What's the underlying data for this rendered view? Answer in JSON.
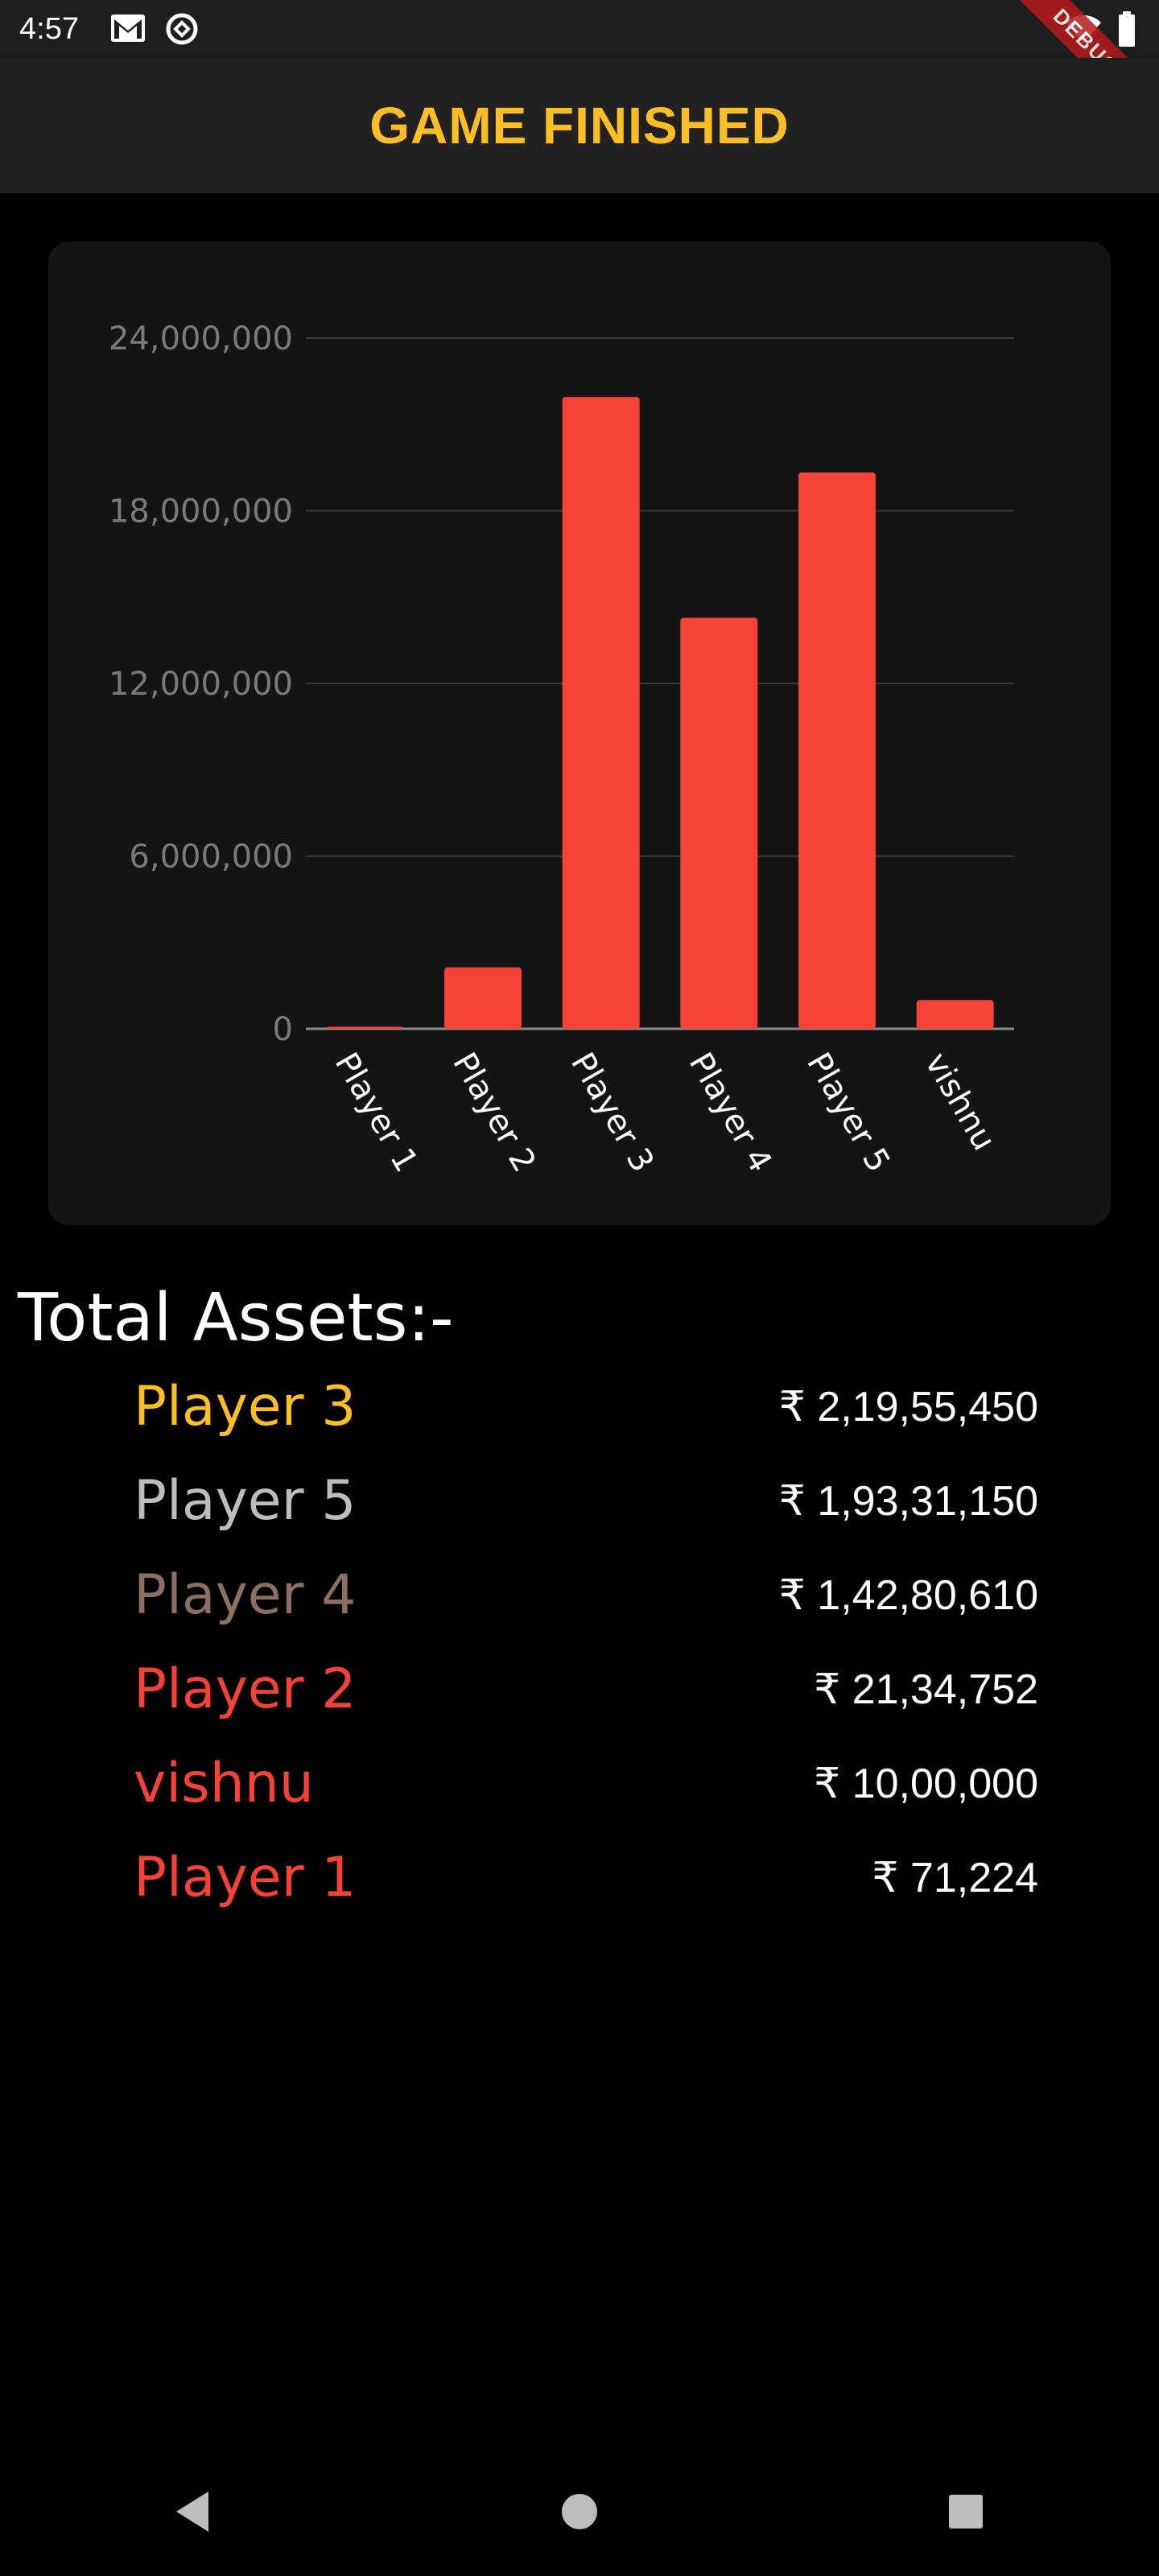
{
  "status_bar": {
    "time": "4:57",
    "left_icons": [
      "gmail-icon",
      "sync-icon"
    ],
    "right_icons": [
      "wifi-icon",
      "battery-icon"
    ],
    "debug_label": "DEBUG"
  },
  "app_bar": {
    "title": "GAME FINISHED",
    "title_color": "#fbbf24"
  },
  "chart_data": {
    "type": "bar",
    "categories": [
      "Player 1",
      "Player 2",
      "Player 3",
      "Player 4",
      "Player 5",
      "vishnu"
    ],
    "values": [
      71224,
      2134752,
      21955450,
      14280610,
      19331150,
      1000000
    ],
    "yticks": [
      "0",
      "6,000,000",
      "12,000,000",
      "18,000,000",
      "24,000,000"
    ],
    "ylim": [
      0,
      24000000
    ],
    "grid": true,
    "bar_color": "#f44336"
  },
  "assets": {
    "title": "Total Assets:-",
    "rows": [
      {
        "name": "Player 3",
        "value": "₹ 2,19,55,450",
        "color": "#fbbf24"
      },
      {
        "name": "Player 5",
        "value": "₹ 1,93,31,150",
        "color": "#bdbdbd"
      },
      {
        "name": "Player 4",
        "value": "₹ 1,42,80,610",
        "color": "#8d6e63"
      },
      {
        "name": "Player 2",
        "value": "₹ 21,34,752",
        "color": "#f44336"
      },
      {
        "name": "vishnu",
        "value": "₹ 10,00,000",
        "color": "#f44336"
      },
      {
        "name": "Player 1",
        "value": "₹ 71,224",
        "color": "#f44336"
      }
    ]
  },
  "nav_bar": {
    "buttons": [
      "back-icon",
      "home-icon",
      "recents-icon"
    ]
  }
}
